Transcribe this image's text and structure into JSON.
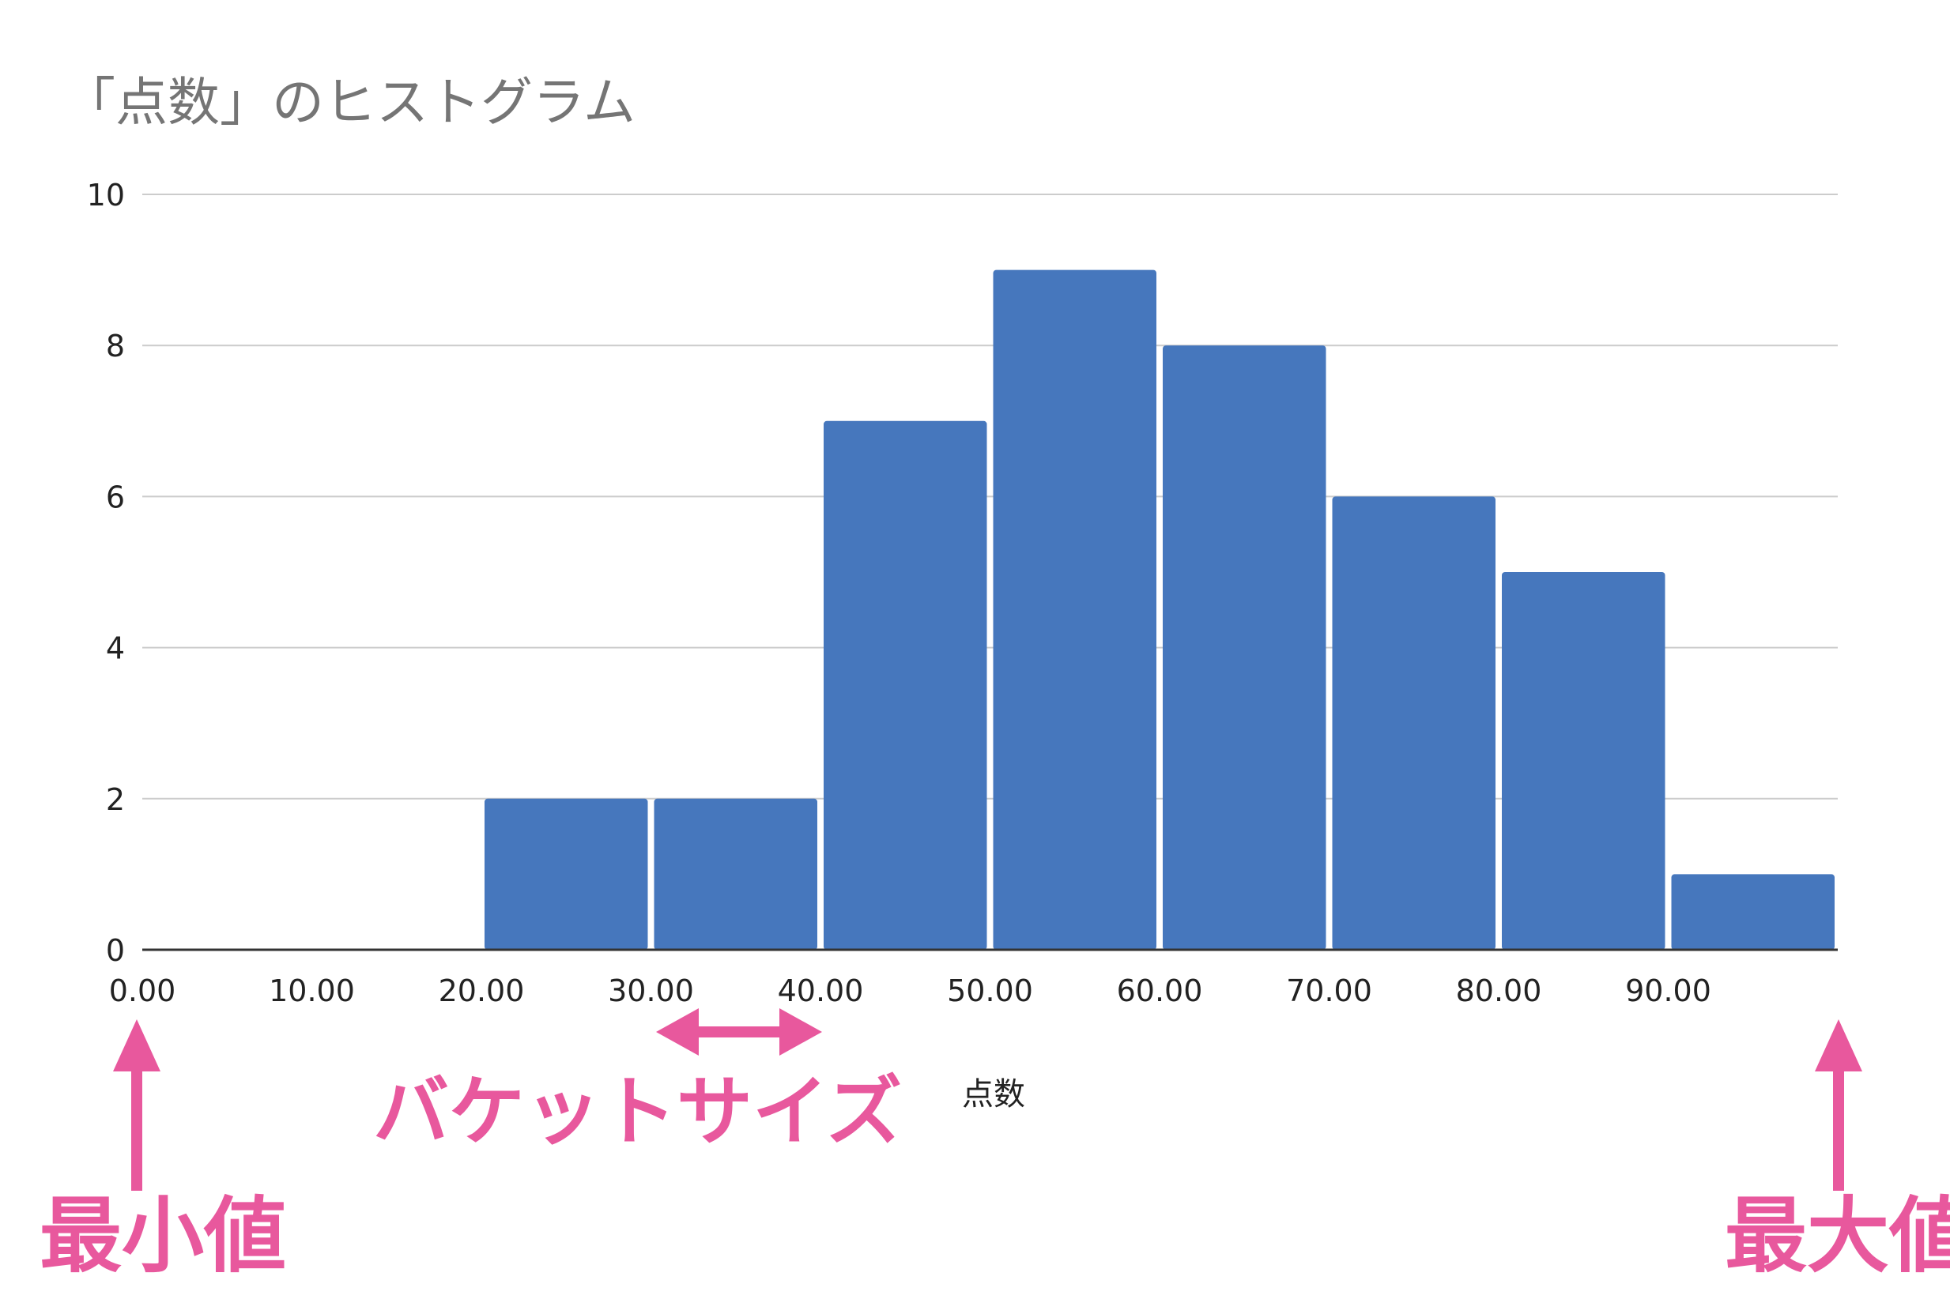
{
  "chart_data": {
    "type": "bar",
    "title": "「点数」のヒストグラム",
    "xlabel": "点数",
    "ylabel": "",
    "categories": [
      "0-10",
      "10-20",
      "20-30",
      "30-40",
      "40-50",
      "50-60",
      "60-70",
      "70-80",
      "80-90",
      "90-100"
    ],
    "bin_edges": [
      0,
      10,
      20,
      30,
      40,
      50,
      60,
      70,
      80,
      90,
      100
    ],
    "values": [
      0,
      0,
      2,
      2,
      7,
      9,
      8,
      6,
      5,
      1
    ],
    "x_tick_labels": [
      "0.00",
      "10.00",
      "20.00",
      "30.00",
      "40.00",
      "50.00",
      "60.00",
      "70.00",
      "80.00",
      "90.00"
    ],
    "y_ticks": [
      0,
      2,
      4,
      6,
      8,
      10
    ],
    "xlim": [
      0,
      100
    ],
    "ylim": [
      0,
      10
    ],
    "grid": true,
    "bar_color": "#4677bd",
    "gridline_color": "#cccccc"
  },
  "annotations": {
    "color": "#e8589d",
    "bucket_size": "バケットサイズ",
    "min_value": "最小値",
    "max_value": "最大値"
  }
}
